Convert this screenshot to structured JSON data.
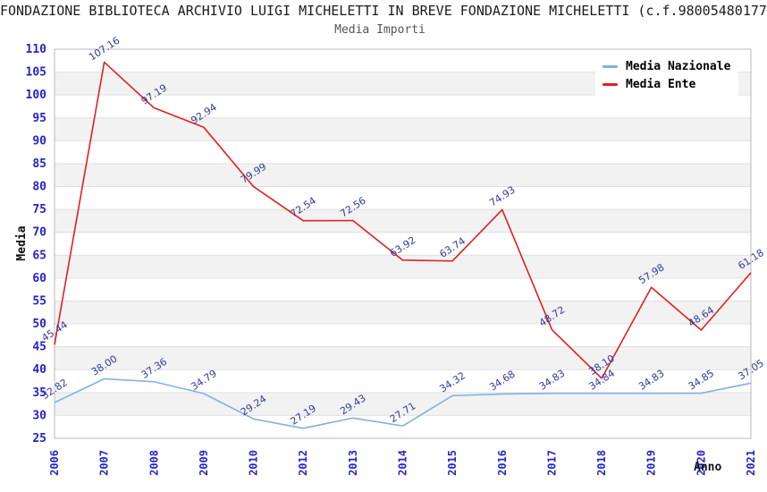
{
  "header": {
    "title": "FONDAZIONE BIBLIOTECA ARCHIVIO LUIGI MICHELETTI IN BREVE FONDAZIONE MICHELETTI (c.f.98005480177"
  },
  "chart_data": {
    "type": "line",
    "title": "Media Importi",
    "xlabel": "Anno",
    "ylabel": "Media",
    "ylim": [
      25,
      110
    ],
    "ytick_step": 5,
    "grid": "horizontal-bands-alternating",
    "legend_position": "top-right-inside",
    "categories": [
      "2006",
      "2007",
      "2008",
      "2009",
      "2010",
      "2012",
      "2013",
      "2014",
      "2015",
      "2016",
      "2017",
      "2018",
      "2019",
      "2020",
      "2021"
    ],
    "series": [
      {
        "name": "Media Nazionale",
        "color": "#7fb2e5",
        "values": [
          32.82,
          38.0,
          37.36,
          34.79,
          29.24,
          27.19,
          29.43,
          27.71,
          34.32,
          34.68,
          34.83,
          34.84,
          34.83,
          34.85,
          37.05
        ],
        "labels": [
          "32.82",
          "38.00",
          "37.36",
          "34.79",
          "29.24",
          "27.19",
          "29.43",
          "27.71",
          "34.32",
          "34.68",
          "34.83",
          "34.84",
          "34.83",
          "34.85",
          "37.05"
        ]
      },
      {
        "name": "Media Ente",
        "color": "#e02020",
        "values": [
          45.44,
          107.16,
          97.19,
          92.94,
          79.99,
          72.54,
          72.56,
          63.92,
          63.74,
          74.93,
          48.72,
          38.1,
          57.98,
          48.64,
          61.18
        ],
        "labels": [
          "45.44",
          "107.16",
          "97.19",
          "92.94",
          "79.99",
          "72.54",
          "72.56",
          "63.92",
          "63.74",
          "74.93",
          "48.72",
          "38.10",
          "57.98",
          "48.64",
          "61.18"
        ]
      }
    ],
    "colors": {
      "axis_tick": "#2424cc",
      "data_label": "#333a99",
      "band_gray": "#f2f2f2",
      "band_white": "#ffffff",
      "gridline": "#e0e0e0",
      "border": "#b8b8b8"
    }
  }
}
